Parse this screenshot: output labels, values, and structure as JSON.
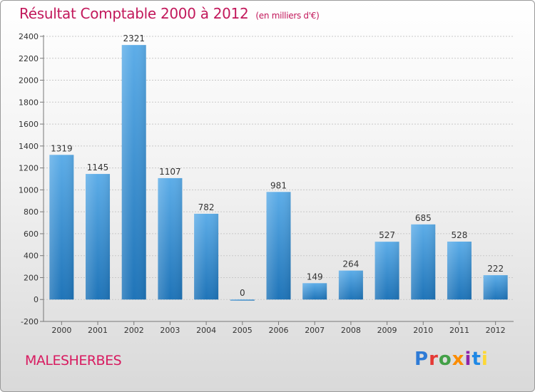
{
  "title": "Résultat Comptable 2000 à 2012",
  "subtitle": "(en milliers d'€)",
  "commune": "MALESHERBES",
  "logo": {
    "letters": [
      "P",
      "r",
      "o",
      "x",
      "i",
      "t",
      "i"
    ],
    "colors": [
      "#2e7bd6",
      "#e53935",
      "#43a047",
      "#fb8c00",
      "#8e24aa",
      "#1e88e5",
      "#fdd835"
    ]
  },
  "colors": {
    "bar_top": "#5dade8",
    "bar_bottom": "#1f74b8",
    "title": "#c2185b"
  },
  "chart_data": {
    "type": "bar",
    "title": "Résultat Comptable 2000 à 2012",
    "ylabel": "en milliers d'€",
    "xlabel": "",
    "grid": true,
    "categories": [
      "2000",
      "2001",
      "2002",
      "2003",
      "2004",
      "2005",
      "2006",
      "2007",
      "2008",
      "2009",
      "2010",
      "2011",
      "2012"
    ],
    "values": [
      1319,
      1145,
      2321,
      1107,
      782,
      0,
      981,
      149,
      264,
      527,
      685,
      528,
      222
    ],
    "ylim": [
      -200,
      2400
    ],
    "yticks": [
      -200,
      0,
      200,
      400,
      600,
      800,
      1000,
      1200,
      1400,
      1600,
      1800,
      2000,
      2200,
      2400
    ]
  }
}
